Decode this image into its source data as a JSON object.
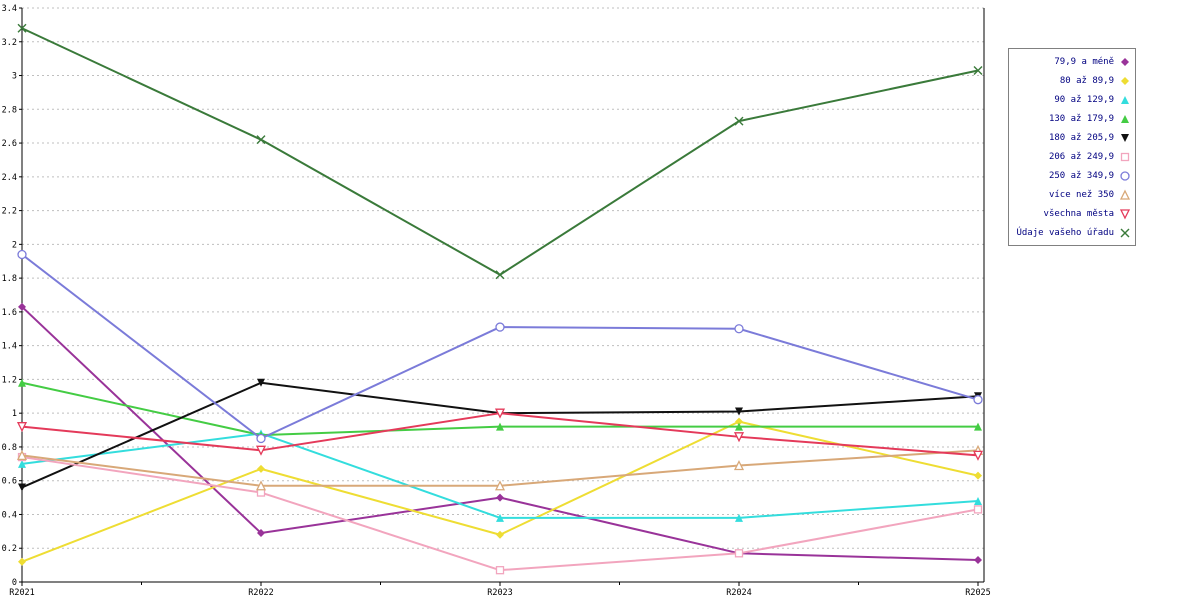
{
  "chart_data": {
    "type": "line",
    "title": "",
    "xlabel": "",
    "ylabel": "",
    "x_categories": [
      "R2021",
      "R2022",
      "R2023",
      "R2024",
      "R2025"
    ],
    "ylim": [
      0,
      3.4
    ],
    "ytick_step": 0.2,
    "grid": true,
    "legend_position": "right",
    "series": [
      {
        "name": "79,9 a méně",
        "color": "#993399",
        "marker": "diamond-filled",
        "values": [
          1.63,
          0.29,
          0.5,
          0.17,
          0.13
        ]
      },
      {
        "name": "80 až 89,9",
        "color": "#EEDD33",
        "marker": "diamond-filled",
        "values": [
          0.12,
          0.67,
          0.28,
          0.95,
          0.63
        ]
      },
      {
        "name": "90 až 129,9",
        "color": "#33DDDD",
        "marker": "triangle-filled",
        "values": [
          0.7,
          0.88,
          0.38,
          0.38,
          0.48
        ]
      },
      {
        "name": "130 až 179,9",
        "color": "#44CC44",
        "marker": "triangle-filled",
        "values": [
          1.18,
          0.87,
          0.92,
          0.92,
          0.92
        ]
      },
      {
        "name": "180 až 205,9",
        "color": "#111111",
        "marker": "triangle-down-filled",
        "values": [
          0.56,
          1.18,
          1.0,
          1.01,
          1.1
        ]
      },
      {
        "name": "206 až 249,9",
        "color": "#F2A5BE",
        "marker": "square-open",
        "values": [
          0.74,
          0.53,
          0.07,
          0.17,
          0.43
        ]
      },
      {
        "name": "250 až 349,9",
        "color": "#7B7BD9",
        "marker": "circle-open",
        "values": [
          1.94,
          0.85,
          1.51,
          1.5,
          1.08
        ]
      },
      {
        "name": "více než 350",
        "color": "#D8A878",
        "marker": "triangle-open",
        "values": [
          0.75,
          0.57,
          0.57,
          0.69,
          0.78
        ]
      },
      {
        "name": "všechna města",
        "color": "#E43A5A",
        "marker": "triangle-down-open",
        "values": [
          0.92,
          0.78,
          1.0,
          0.86,
          0.75
        ]
      },
      {
        "name": "Údaje vašeho úřadu",
        "color": "#3A7A3A",
        "marker": "x",
        "values": [
          3.28,
          2.62,
          1.82,
          2.73,
          3.03
        ]
      }
    ],
    "axis_color": "#000000",
    "gridline_color": "#bfbfbf",
    "legend_text_color": "#000080"
  }
}
